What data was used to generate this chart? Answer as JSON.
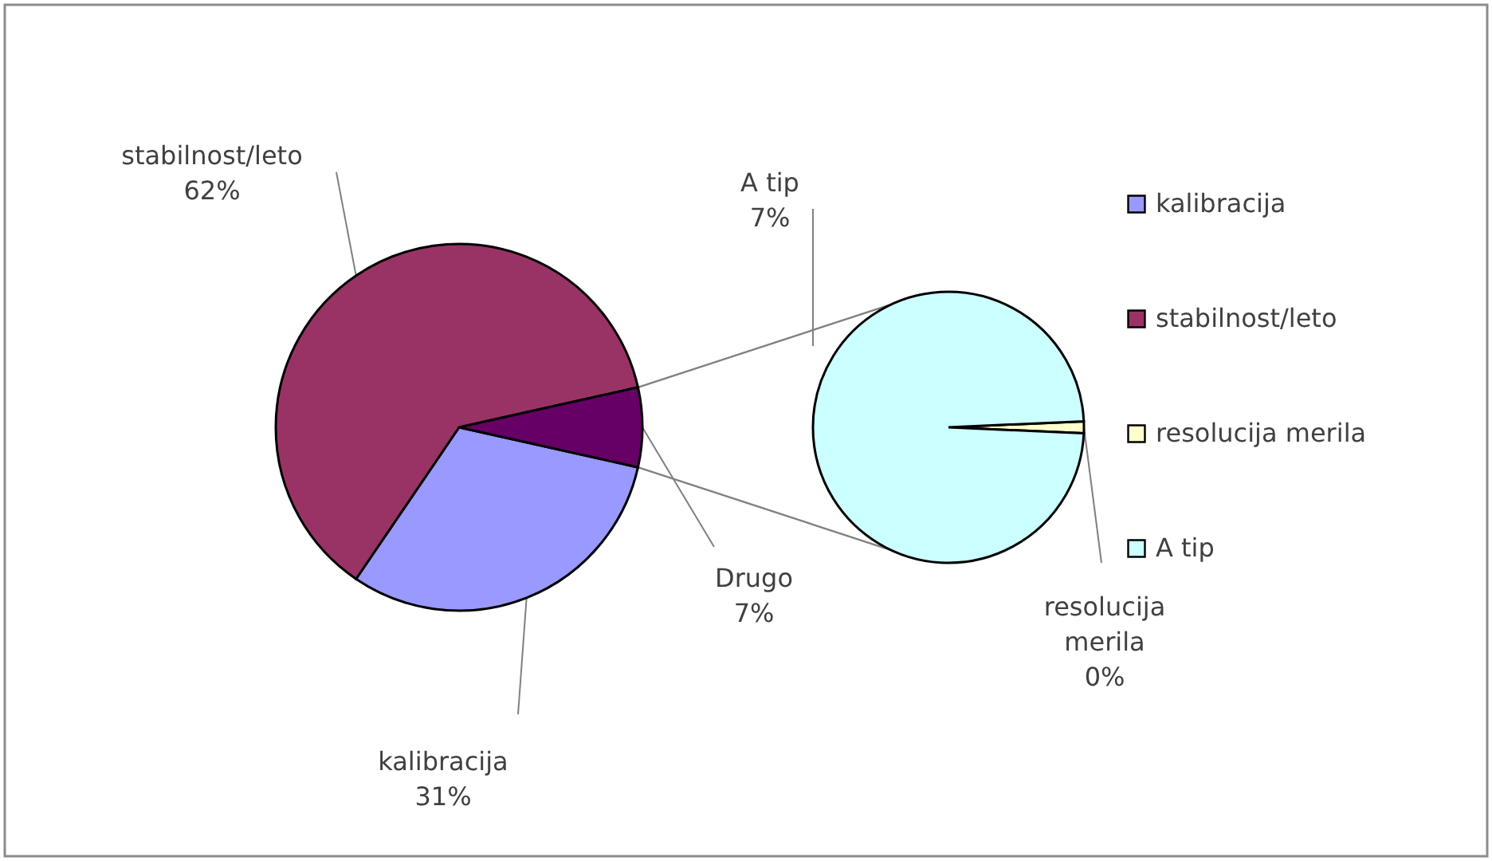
{
  "chart_data": [
    {
      "type": "pie",
      "categories": [
        "kalibracija",
        "stabilnost/leto",
        "Drugo"
      ],
      "values": [
        31,
        62,
        7
      ],
      "value_labels": [
        "31%",
        "62%",
        "7%"
      ],
      "colors": [
        "#9999ff",
        "#993366",
        "#660066"
      ],
      "legend": "right"
    },
    {
      "type": "pie",
      "categories": [
        "resolucija merila",
        "A tip"
      ],
      "values": [
        0.1,
        7
      ],
      "value_labels": [
        "0%",
        "7%"
      ],
      "colors": [
        "#ffffcc",
        "#ccffff"
      ],
      "legend": "right"
    }
  ]
}
